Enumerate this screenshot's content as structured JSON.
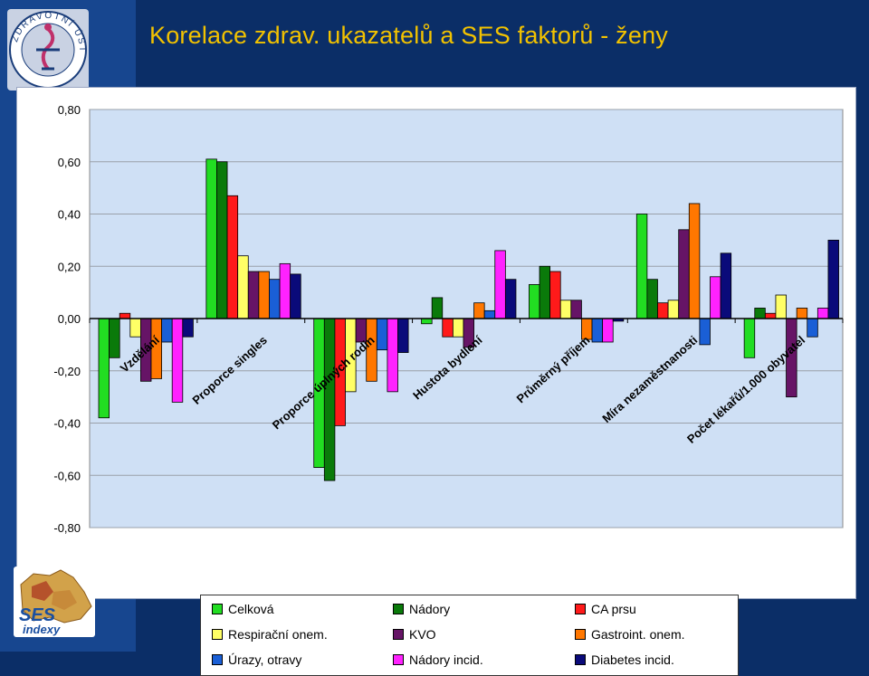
{
  "slide": {
    "title": "Korelace zdrav. ukazatelů a SES faktorů - ženy",
    "logo_top_text": "ZDRAVOTNÍ ÚSTAV",
    "logo_bottom_text": "SES",
    "logo_bottom_subtext": "indexy"
  },
  "colors": {
    "background": "#0b2e67",
    "title": "#f2c200",
    "plot_area": "#cfe0f5",
    "series": [
      "#22dd22",
      "#0a7a0a",
      "#ff1a1a",
      "#ffff66",
      "#661466",
      "#ff7700",
      "#1a5fd6",
      "#ff22ff",
      "#0a0a7a"
    ]
  },
  "chart_data": {
    "type": "bar",
    "categories": [
      "Vzdělání",
      "Proporce singles",
      "Proporce úplných rodin",
      "Hustota bydlení",
      "Průměrný příjem",
      "Míra nezaměstnanosti",
      "Počet lékařů/1.000 obyvatel"
    ],
    "series": [
      {
        "name": "Celková",
        "values": [
          -0.38,
          0.61,
          -0.57,
          -0.02,
          0.13,
          0.4,
          -0.15
        ]
      },
      {
        "name": "Nádory",
        "values": [
          -0.15,
          0.6,
          -0.62,
          0.08,
          0.2,
          0.15,
          0.04
        ]
      },
      {
        "name": "CA prsu",
        "values": [
          0.02,
          0.47,
          -0.41,
          -0.07,
          0.18,
          0.06,
          0.02
        ]
      },
      {
        "name": "Respirační onem.",
        "values": [
          -0.07,
          0.24,
          -0.28,
          -0.07,
          0.07,
          0.07,
          0.09
        ]
      },
      {
        "name": "KVO",
        "values": [
          -0.24,
          0.18,
          -0.09,
          -0.11,
          0.07,
          0.34,
          -0.3
        ]
      },
      {
        "name": "Gastroint. onem.",
        "values": [
          -0.23,
          0.18,
          -0.24,
          0.06,
          -0.08,
          0.44,
          0.04
        ]
      },
      {
        "name": "Úrazy, otravy",
        "values": [
          -0.09,
          0.15,
          -0.12,
          0.03,
          -0.09,
          -0.1,
          -0.07
        ]
      },
      {
        "name": "Nádory incid.",
        "values": [
          -0.32,
          0.21,
          -0.28,
          0.26,
          -0.09,
          0.16,
          0.04
        ]
      },
      {
        "name": "Diabetes incid.",
        "values": [
          -0.07,
          0.17,
          -0.13,
          0.15,
          -0.01,
          0.25,
          0.3
        ]
      }
    ],
    "y_ticks": [
      "0,80",
      "0,60",
      "0,40",
      "0,20",
      "0,00",
      "-0,20",
      "-0,40",
      "-0,60",
      "-0,80"
    ],
    "ylim": [
      -0.8,
      0.8
    ],
    "grid": true,
    "legend_position": "bottom"
  }
}
